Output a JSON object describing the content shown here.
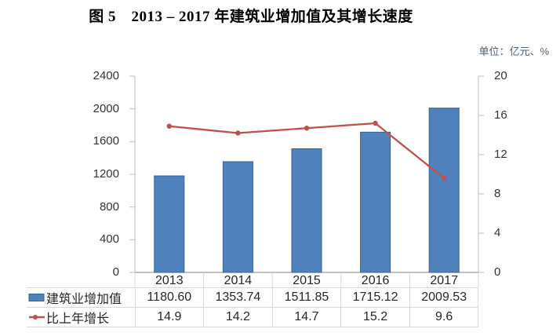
{
  "title": "图 5　2013 – 2017 年建筑业增加值及其增长速度",
  "unit_label": "单位：亿元、%",
  "colors": {
    "bar_fill": "#4F81BD",
    "bar_border": "#36608F",
    "line": "#C0504D",
    "axis_gray": "#BFBFBF",
    "x_axis_gray": "#808080",
    "table_border": "#D9D9D9"
  },
  "chart_data": {
    "type": "bar",
    "subtype": "bar+line combo",
    "categories": [
      "2013",
      "2014",
      "2015",
      "2016",
      "2017"
    ],
    "series": [
      {
        "name": "建筑业增加值",
        "type": "bar",
        "axis": "left",
        "values": [
          1180.6,
          1353.74,
          1511.85,
          1715.12,
          2009.53
        ],
        "color": "#4F81BD",
        "border_color": "#36608F"
      },
      {
        "name": "比上年增长",
        "type": "line",
        "axis": "right",
        "values": [
          14.9,
          14.2,
          14.7,
          15.2,
          9.6
        ],
        "color": "#C0504D"
      }
    ],
    "axes": {
      "left": {
        "ticks": [
          0,
          400,
          800,
          1200,
          1600,
          2000,
          2400
        ],
        "range": [
          0,
          2400
        ]
      },
      "right": {
        "ticks": [
          0,
          4,
          8,
          12,
          16,
          20
        ],
        "range": [
          0,
          20
        ]
      }
    },
    "grid": false,
    "legend_position": "table-left"
  },
  "table": {
    "rows": [
      {
        "label": "建筑业增加值",
        "marker": "bar-swatch",
        "values": [
          "1180.60",
          "1353.74",
          "1511.85",
          "1715.12",
          "2009.53"
        ]
      },
      {
        "label": "比上年增长",
        "marker": "line-marker",
        "values": [
          "14.9",
          "14.2",
          "14.7",
          "15.2",
          "9.6"
        ]
      }
    ]
  }
}
